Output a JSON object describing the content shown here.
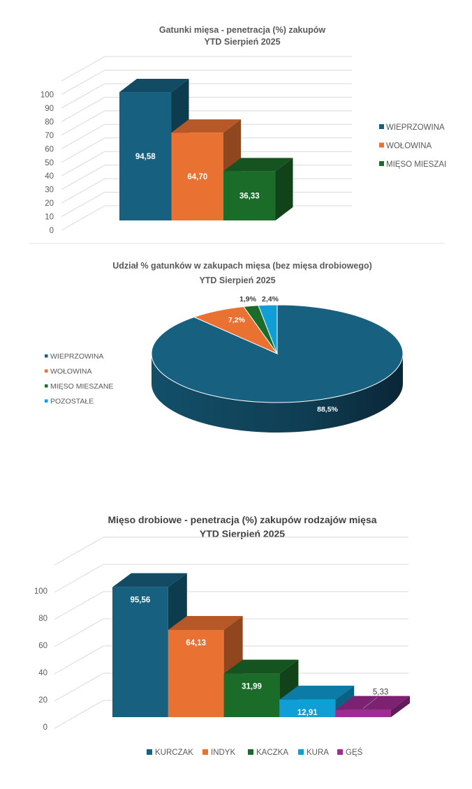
{
  "chart_data": [
    {
      "type": "bar",
      "title": "Gatunki mięsa - penetracja (%) zakupów",
      "subtitle": "YTD Sierpień 2025",
      "categories": [
        "WIEPRZOWINA",
        "WOŁOWINA",
        "MIĘSO MIESZANE"
      ],
      "legend_labels": [
        "WIEPRZOWINA",
        "WOŁOWINA",
        "MIĘSO MIESZAI"
      ],
      "values": [
        94.58,
        64.7,
        36.33
      ],
      "data_labels": [
        "94,58",
        "64,70",
        "36,33"
      ],
      "colors": [
        "#17607f",
        "#e97132",
        "#1b6b29"
      ],
      "yticks": [
        "0",
        "10",
        "20",
        "30",
        "40",
        "50",
        "60",
        "70",
        "80",
        "90",
        "100"
      ],
      "ylim": [
        0,
        100
      ],
      "legend": "right",
      "grid": true
    },
    {
      "type": "pie",
      "title": "Udział % gatunków w zakupach mięsa (bez mięsa drobiowego)",
      "subtitle": "YTD Sierpień 2025",
      "categories": [
        "WIEPRZOWINA",
        "WOŁOWINA",
        "MIĘSO MIESZANE",
        "POZOSTAŁE"
      ],
      "values": [
        88.5,
        7.2,
        1.9,
        2.4
      ],
      "data_labels": [
        "88,5%",
        "7,2%",
        "1,9%",
        "2,4%"
      ],
      "colors": [
        "#17607f",
        "#e97132",
        "#1b6b29",
        "#0f9ed5"
      ],
      "legend": "left"
    },
    {
      "type": "bar",
      "title": "Mięso drobiowe - penetracja (%) zakupów rodzajów mięsa",
      "subtitle": "YTD Sierpień 2025",
      "categories": [
        "KURCZAK",
        "INDYK",
        "KACZKA",
        "KURA",
        "GĘŚ"
      ],
      "values": [
        95.56,
        64.13,
        31.99,
        12.91,
        5.33
      ],
      "data_labels": [
        "95,56",
        "64,13",
        "31,99",
        "12,91",
        "5,33"
      ],
      "colors": [
        "#17607f",
        "#e97132",
        "#1b6b29",
        "#0f9ed5",
        "#a02b93"
      ],
      "yticks": [
        "0",
        "20",
        "40",
        "60",
        "80",
        "100"
      ],
      "ylim": [
        0,
        100
      ],
      "legend": "bottom",
      "grid": true
    }
  ]
}
